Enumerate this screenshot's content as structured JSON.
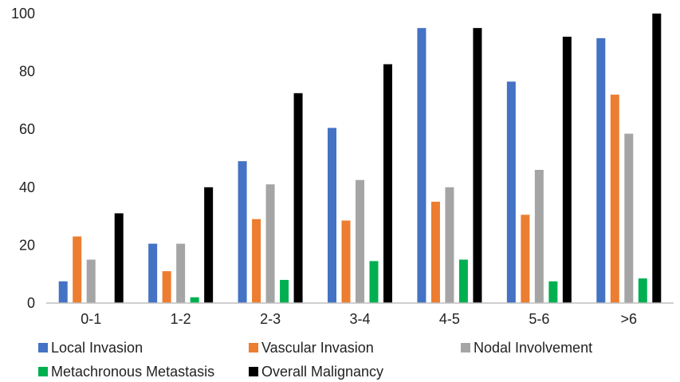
{
  "chart_data": {
    "type": "bar",
    "title": "",
    "xlabel": "",
    "ylabel": "",
    "ylim": [
      0,
      100
    ],
    "yticks": [
      0,
      20,
      40,
      60,
      80,
      100
    ],
    "grid": false,
    "legend_position": "bottom",
    "categories": [
      "0-1",
      "1-2",
      "2-3",
      "3-4",
      "4-5",
      "5-6",
      ">6"
    ],
    "series": [
      {
        "name": "Local Invasion",
        "color": "#4472C4",
        "values": [
          7.5,
          20.5,
          49,
          60.5,
          95,
          76.5,
          91.5
        ]
      },
      {
        "name": "Vascular Invasion",
        "color": "#ED7D31",
        "values": [
          23,
          11,
          29,
          28.5,
          35,
          30.5,
          72
        ]
      },
      {
        "name": "Nodal Involvement",
        "color": "#A5A5A5",
        "values": [
          15,
          20.5,
          41,
          42.5,
          40,
          46,
          58.5
        ]
      },
      {
        "name": "Metachronous Metastasis",
        "color": "#00B050",
        "values": [
          0,
          2,
          8,
          14.5,
          15,
          7.5,
          8.5
        ]
      },
      {
        "name": "Overall Malignancy",
        "color": "#000000",
        "values": [
          31,
          40,
          72.5,
          82.5,
          95,
          92,
          100
        ]
      }
    ]
  }
}
